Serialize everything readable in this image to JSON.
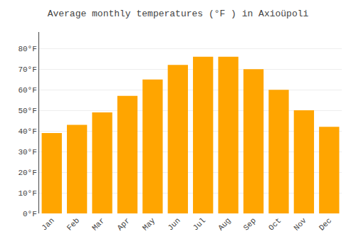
{
  "chart_data": {
    "type": "bar",
    "title": "Average monthly temperatures (°F ) in Axioüpoli",
    "categories": [
      "Jan",
      "Feb",
      "Mar",
      "Apr",
      "May",
      "Jun",
      "Jul",
      "Aug",
      "Sep",
      "Oct",
      "Nov",
      "Dec"
    ],
    "values": [
      39,
      43,
      49,
      57,
      65,
      72,
      76,
      76,
      70,
      60,
      50,
      42
    ],
    "color": "#FFA500",
    "ylim": [
      0,
      88
    ],
    "yticks": [
      {
        "value": 0,
        "label": "0°F"
      },
      {
        "value": 10,
        "label": "10°F"
      },
      {
        "value": 20,
        "label": "20°F"
      },
      {
        "value": 30,
        "label": "30°F"
      },
      {
        "value": 40,
        "label": "40°F"
      },
      {
        "value": 50,
        "label": "50°F"
      },
      {
        "value": 60,
        "label": "60°F"
      },
      {
        "value": 70,
        "label": "70°F"
      },
      {
        "value": 80,
        "label": "80°F"
      }
    ],
    "grid": true
  }
}
